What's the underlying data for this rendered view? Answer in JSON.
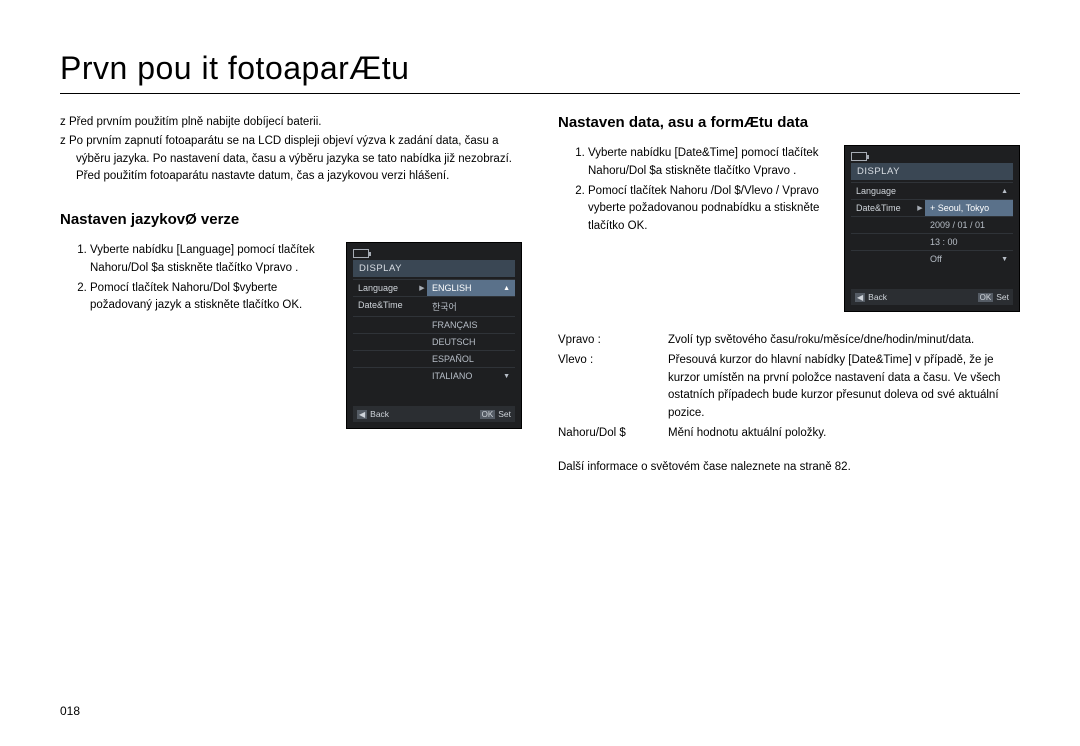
{
  "title": "Prvn  pou it  fotoaparÆtu",
  "page_number": "018",
  "left": {
    "b1": "Před prvním použitím plně nabijte dobíjecí baterii.",
    "b2": "Po prvním zapnutí fotoaparátu se na LCD displeji objeví výzva k zadání data, času a výběru jazyka. Po nastavení data, času a výběru jazyka se tato nabídka již nezobrazí. Před použitím fotoaparátu nastavte datum, čas a jazykovou verzi hlášení.",
    "sub": "Nastaven  jazykovØ verze",
    "o1": "Vyberte nabídku [Language] pomocí tlačítek Nahoru/Dol $a stiskněte tlačítko Vpravo .",
    "o2": "Pomocí tlačítek Nahoru/Dol $vyberte požadovaný jazyk a stiskněte tlačítko OK.",
    "lcd": {
      "tab": "DISPLAY",
      "menu1": "Language",
      "menu2": "Date&Time",
      "opts": [
        "ENGLISH",
        "한국어",
        "FRANÇAIS",
        "DEUTSCH",
        "ESPAÑOL",
        "ITALIANO"
      ],
      "back": "Back",
      "ok": "OK",
      "set": "Set"
    }
  },
  "right": {
    "sub": "Nastaven  data,    asu a formÆtu data",
    "o1": "Vyberte nabídku [Date&Time] pomocí tlačítek Nahoru/Dol $a stiskněte tlačítko Vpravo .",
    "o2": "Pomocí tlačítek Nahoru /Dol $/Vlevo / Vpravo  vyberte požadovanou podnabídku a stiskněte tlačítko OK.",
    "lcd": {
      "tab": "DISPLAY",
      "menu1": "Language",
      "menu2": "Date&Time",
      "val1": "+ Seoul, Tokyo",
      "val2": "2009 / 01 / 01",
      "val3": "13 : 00",
      "val4": "Off",
      "back": "Back",
      "ok": "OK",
      "set": "Set"
    },
    "def1k": "Vpravo  :",
    "def1v": "Zvolí typ světového času/roku/měsíce/dne/hodin/minut/data.",
    "def2k": "Vlevo :",
    "def2v": "Přesouvá kurzor do hlavní nabídky [Date&Time] v případě, že je kurzor umístěn na první položce nastavení data a času. Ve všech ostatních případech bude kurzor přesunut doleva od své aktuální pozice.",
    "def3k": "Nahoru/Dol $",
    "def3v": "Mění hodnotu aktuální položky.",
    "tail": "Další informace o světovém čase naleznete na straně 82."
  }
}
